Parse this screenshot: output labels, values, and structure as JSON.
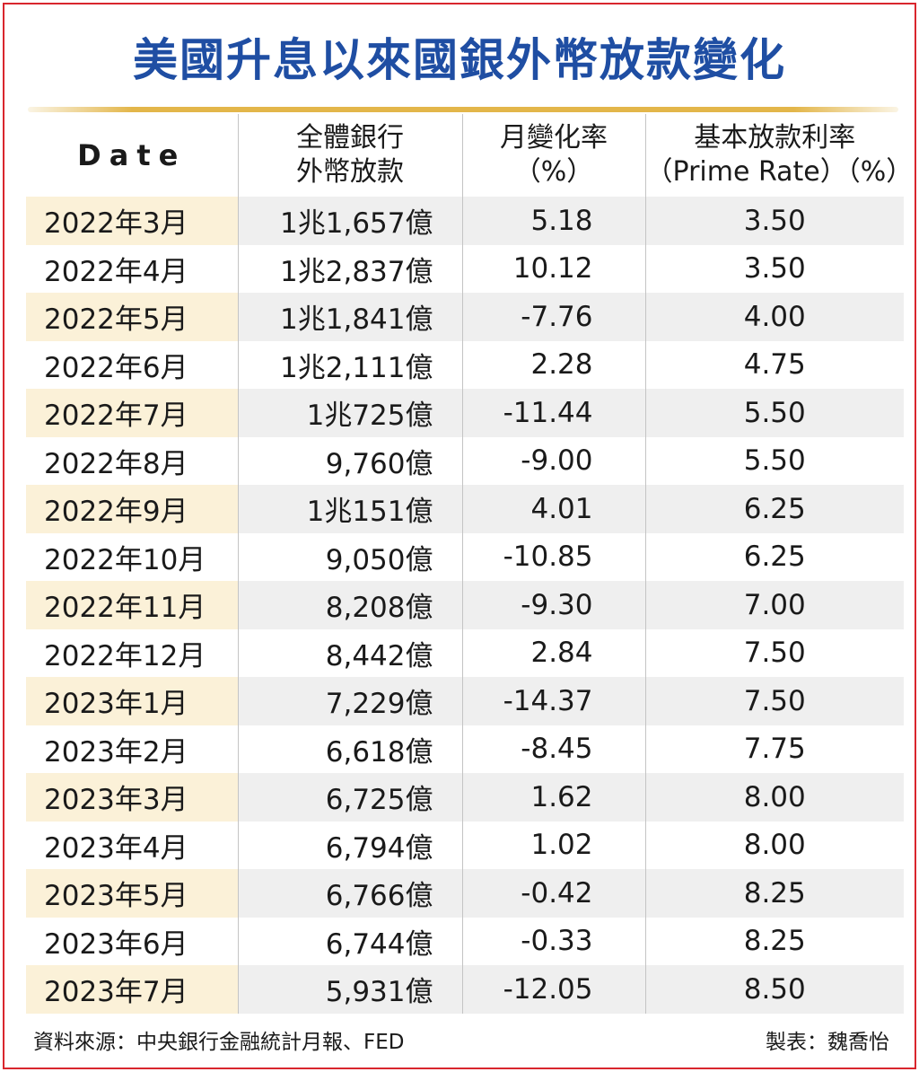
{
  "title": "美國升息以來國銀外幣放款變化",
  "source": "資料來源：中央銀行金融統計月報、FED",
  "credit": "製表：魏喬怡",
  "colors": {
    "title": "#1f4ea3",
    "border": "#d9262d",
    "accent_rule": "#e3b64a",
    "row_band": "#efefef",
    "date_band": "#fbf1d8"
  },
  "chart_data": {
    "type": "table",
    "title": "美國升息以來國銀外幣放款變化",
    "columns": [
      {
        "line1": "Date",
        "line2": ""
      },
      {
        "line1": "全體銀行",
        "line2": "外幣放款"
      },
      {
        "line1": "月變化率",
        "line2": "（%）"
      },
      {
        "line1": "基本放款利率",
        "line2": "（Prime Rate）（%）"
      }
    ],
    "rows": [
      {
        "date": "2022年3月",
        "loans": "1兆1,657億",
        "mom": "5.18",
        "prime": "3.50"
      },
      {
        "date": "2022年4月",
        "loans": "1兆2,837億",
        "mom": "10.12",
        "prime": "3.50"
      },
      {
        "date": "2022年5月",
        "loans": "1兆1,841億",
        "mom": "-7.76",
        "prime": "4.00"
      },
      {
        "date": "2022年6月",
        "loans": "1兆2,111億",
        "mom": "2.28",
        "prime": "4.75"
      },
      {
        "date": "2022年7月",
        "loans": "1兆725億",
        "mom": "-11.44",
        "prime": "5.50"
      },
      {
        "date": "2022年8月",
        "loans": "9,760億",
        "mom": "-9.00",
        "prime": "5.50"
      },
      {
        "date": "2022年9月",
        "loans": "1兆151億",
        "mom": "4.01",
        "prime": "6.25"
      },
      {
        "date": "2022年10月",
        "loans": "9,050億",
        "mom": "-10.85",
        "prime": "6.25"
      },
      {
        "date": "2022年11月",
        "loans": "8,208億",
        "mom": "-9.30",
        "prime": "7.00"
      },
      {
        "date": "2022年12月",
        "loans": "8,442億",
        "mom": "2.84",
        "prime": "7.50"
      },
      {
        "date": "2023年1月",
        "loans": "7,229億",
        "mom": "-14.37",
        "prime": "7.50"
      },
      {
        "date": "2023年2月",
        "loans": "6,618億",
        "mom": "-8.45",
        "prime": "7.75"
      },
      {
        "date": "2023年3月",
        "loans": "6,725億",
        "mom": "1.62",
        "prime": "8.00"
      },
      {
        "date": "2023年4月",
        "loans": "6,794億",
        "mom": "1.02",
        "prime": "8.00"
      },
      {
        "date": "2023年5月",
        "loans": "6,766億",
        "mom": "-0.42",
        "prime": "8.25"
      },
      {
        "date": "2023年6月",
        "loans": "6,744億",
        "mom": "-0.33",
        "prime": "8.25"
      },
      {
        "date": "2023年7月",
        "loans": "5,931億",
        "mom": "-12.05",
        "prime": "8.50"
      }
    ]
  }
}
